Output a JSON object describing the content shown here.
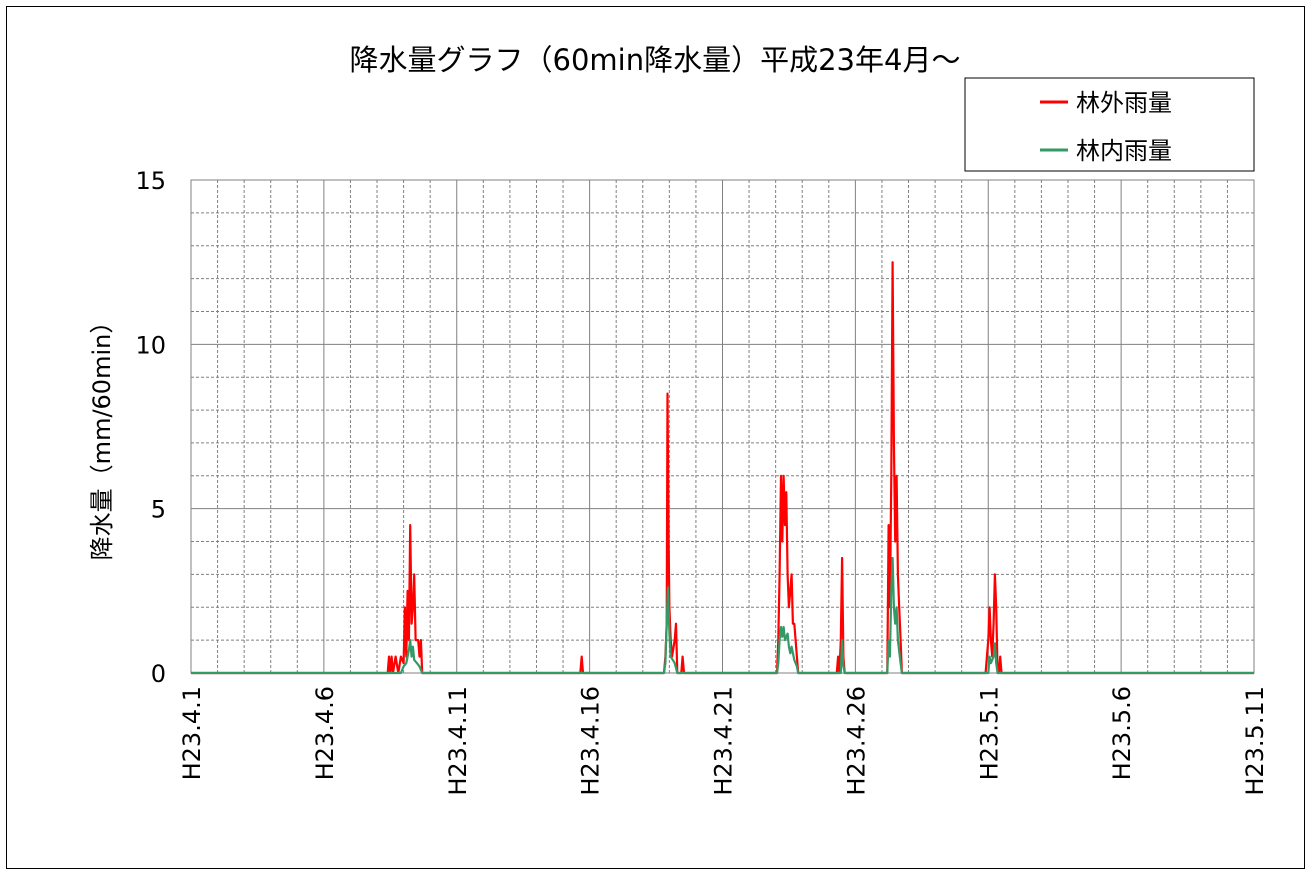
{
  "chart_data": {
    "type": "line",
    "title": "降水量グラフ（60min降水量）平成23年4月～",
    "xlabel": "",
    "ylabel": "降水量（mm/60min）",
    "ylim": [
      0,
      15
    ],
    "yticks": [
      0,
      5,
      10,
      15
    ],
    "x_tick_labels": [
      "H23.4.1",
      "H23.4.6",
      "H23.4.11",
      "H23.4.16",
      "H23.4.21",
      "H23.4.26",
      "H23.5.1",
      "H23.5.6",
      "H23.5.11"
    ],
    "x_unit": "day index from H23.4.1 (day 0 = H23.4.1)",
    "xlim": [
      0,
      40
    ],
    "grid": true,
    "legend_position": "top-right",
    "series": [
      {
        "name": "林外雨量",
        "color": "#ff0000",
        "points": [
          [
            0,
            0
          ],
          [
            7.4,
            0
          ],
          [
            7.45,
            0.5
          ],
          [
            7.5,
            0
          ],
          [
            7.55,
            0.5
          ],
          [
            7.6,
            0
          ],
          [
            7.7,
            0.5
          ],
          [
            7.8,
            0
          ],
          [
            7.9,
            0.5
          ],
          [
            8.0,
            0.3
          ],
          [
            8.05,
            2.0
          ],
          [
            8.1,
            0.5
          ],
          [
            8.15,
            2.5
          ],
          [
            8.2,
            1.0
          ],
          [
            8.25,
            4.5
          ],
          [
            8.3,
            1.5
          ],
          [
            8.35,
            2.0
          ],
          [
            8.4,
            3.0
          ],
          [
            8.45,
            1.0
          ],
          [
            8.5,
            1.0
          ],
          [
            8.55,
            1.0
          ],
          [
            8.6,
            0.5
          ],
          [
            8.65,
            1.0
          ],
          [
            8.7,
            0
          ],
          [
            14.65,
            0
          ],
          [
            14.7,
            0.5
          ],
          [
            14.75,
            0
          ],
          [
            17.8,
            0
          ],
          [
            17.85,
            0.5
          ],
          [
            17.9,
            1.5
          ],
          [
            17.93,
            8.5
          ],
          [
            17.97,
            4.0
          ],
          [
            18.0,
            2.0
          ],
          [
            18.05,
            1.0
          ],
          [
            18.1,
            0.5
          ],
          [
            18.2,
            1.0
          ],
          [
            18.25,
            1.5
          ],
          [
            18.3,
            0
          ],
          [
            18.45,
            0
          ],
          [
            18.5,
            0.5
          ],
          [
            18.55,
            0
          ],
          [
            22.05,
            0
          ],
          [
            22.1,
            1.0
          ],
          [
            22.15,
            3.0
          ],
          [
            22.2,
            6.0
          ],
          [
            22.25,
            4.0
          ],
          [
            22.3,
            6.0
          ],
          [
            22.35,
            4.5
          ],
          [
            22.4,
            5.5
          ],
          [
            22.45,
            3.0
          ],
          [
            22.5,
            2.0
          ],
          [
            22.55,
            2.5
          ],
          [
            22.6,
            3.0
          ],
          [
            22.65,
            1.5
          ],
          [
            22.7,
            1.5
          ],
          [
            22.75,
            1.0
          ],
          [
            22.8,
            0.5
          ],
          [
            22.85,
            0
          ],
          [
            24.3,
            0
          ],
          [
            24.35,
            0.5
          ],
          [
            24.4,
            0
          ],
          [
            24.45,
            1.0
          ],
          [
            24.5,
            3.5
          ],
          [
            24.55,
            0.5
          ],
          [
            24.6,
            0
          ],
          [
            26.2,
            0
          ],
          [
            26.25,
            4.5
          ],
          [
            26.3,
            2.0
          ],
          [
            26.35,
            6.0
          ],
          [
            26.4,
            12.5
          ],
          [
            26.45,
            7.0
          ],
          [
            26.5,
            4.0
          ],
          [
            26.55,
            6.0
          ],
          [
            26.6,
            3.0
          ],
          [
            26.65,
            2.0
          ],
          [
            26.7,
            1.0
          ],
          [
            26.75,
            0
          ],
          [
            29.9,
            0
          ],
          [
            29.95,
            0.5
          ],
          [
            30.0,
            1.0
          ],
          [
            30.05,
            2.0
          ],
          [
            30.1,
            1.0
          ],
          [
            30.15,
            0.5
          ],
          [
            30.2,
            1.5
          ],
          [
            30.25,
            3.0
          ],
          [
            30.3,
            2.0
          ],
          [
            30.35,
            0
          ],
          [
            30.4,
            0
          ],
          [
            30.45,
            0.5
          ],
          [
            30.5,
            0
          ],
          [
            40,
            0
          ]
        ]
      },
      {
        "name": "林内雨量",
        "color": "#339966",
        "points": [
          [
            0,
            0
          ],
          [
            7.9,
            0
          ],
          [
            8.0,
            0.2
          ],
          [
            8.1,
            0.3
          ],
          [
            8.2,
            0.7
          ],
          [
            8.25,
            1.0
          ],
          [
            8.3,
            0.5
          ],
          [
            8.35,
            0.8
          ],
          [
            8.4,
            0.4
          ],
          [
            8.5,
            0.3
          ],
          [
            8.6,
            0.2
          ],
          [
            8.7,
            0
          ],
          [
            17.8,
            0
          ],
          [
            17.85,
            0.3
          ],
          [
            17.9,
            1.5
          ],
          [
            17.95,
            2.6
          ],
          [
            18.0,
            1.2
          ],
          [
            18.05,
            0.5
          ],
          [
            18.2,
            0.3
          ],
          [
            18.3,
            0
          ],
          [
            22.05,
            0
          ],
          [
            22.1,
            0.3
          ],
          [
            22.15,
            1.0
          ],
          [
            22.2,
            1.4
          ],
          [
            22.25,
            1.1
          ],
          [
            22.3,
            1.4
          ],
          [
            22.35,
            1.0
          ],
          [
            22.45,
            1.2
          ],
          [
            22.5,
            0.8
          ],
          [
            22.55,
            0.6
          ],
          [
            22.6,
            0.8
          ],
          [
            22.7,
            0.4
          ],
          [
            22.8,
            0.2
          ],
          [
            22.85,
            0
          ],
          [
            24.45,
            0
          ],
          [
            24.5,
            1.0
          ],
          [
            24.55,
            0.2
          ],
          [
            24.6,
            0
          ],
          [
            26.2,
            0
          ],
          [
            26.25,
            1.0
          ],
          [
            26.3,
            0.5
          ],
          [
            26.35,
            2.5
          ],
          [
            26.4,
            3.5
          ],
          [
            26.45,
            2.0
          ],
          [
            26.5,
            1.5
          ],
          [
            26.55,
            2.0
          ],
          [
            26.6,
            1.0
          ],
          [
            26.7,
            0.3
          ],
          [
            26.75,
            0
          ],
          [
            30.0,
            0
          ],
          [
            30.05,
            0.5
          ],
          [
            30.1,
            0.3
          ],
          [
            30.2,
            0.5
          ],
          [
            30.25,
            0.9
          ],
          [
            30.3,
            0.3
          ],
          [
            30.35,
            0
          ],
          [
            40,
            0
          ]
        ]
      }
    ]
  }
}
